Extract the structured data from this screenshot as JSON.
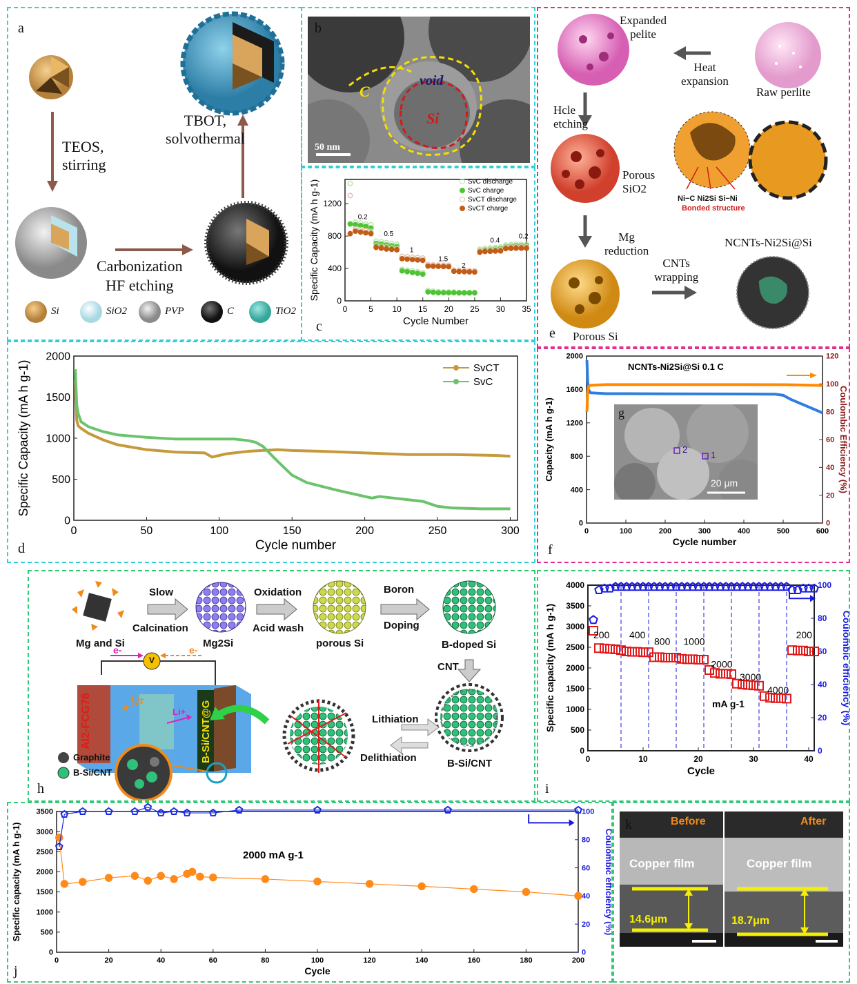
{
  "panel_a": {
    "label": "a",
    "step1": [
      "TEOS,",
      "stirring"
    ],
    "step2": "Carbonization",
    "step3": "HF etching",
    "step4": [
      "TBOT,",
      "solvothermal"
    ],
    "legend": [
      "Si",
      "SiO2",
      "PVP",
      "C",
      "TiO2"
    ]
  },
  "panel_b": {
    "label": "b",
    "c": "C",
    "void": "void",
    "si": "Si",
    "scale": "50 nm"
  },
  "panel_c": {
    "label": "c"
  },
  "panel_d": {
    "label": "d"
  },
  "panel_e": {
    "label": "e",
    "expanded": [
      "Expanded",
      "pelite"
    ],
    "heat": [
      "Heat",
      "expansion"
    ],
    "raw": "Raw perlite",
    "hcle": [
      "Hcle",
      "etching"
    ],
    "porous_sio2": [
      "Porous",
      "SiO2"
    ],
    "bond": "Ni−C Ni2Si Si−Ni",
    "bonded": "Bonded structure",
    "mg": [
      "Mg",
      "reduction"
    ],
    "cnts": [
      "CNTs",
      "wrapping"
    ],
    "product": "NCNTs-Ni2Si@Si",
    "porous_si": "Porous Si"
  },
  "panel_f": {
    "label": "f",
    "g_label": "g",
    "scale": "20 μm",
    "spot1": "1",
    "spot2": "2"
  },
  "panel_h": {
    "label": "h",
    "mgsi": "Mg and Si",
    "slow": "Slow",
    "calc": "Calcination",
    "mg2si": "Mg2Si",
    "oxidation": "Oxidation",
    "acid": "Acid wash",
    "porous_si": "porous Si",
    "boron": "Boron",
    "doping": "Doping",
    "bdoped": "B-doped Si",
    "cnt": "CNT",
    "lith": "Lithiation",
    "delith": "Delithiation",
    "bsicnt": "B-Si/CNT",
    "graphite": "Graphite",
    "bsicnt_legend": "B-Si/CNT",
    "anode": "B-Si/CNT@G",
    "cathode": "Al2-FCG76",
    "v": "V",
    "e": "e-",
    "li": "Li+"
  },
  "panel_i": {
    "label": "i"
  },
  "panel_j": {
    "label": "j"
  },
  "panel_k": {
    "label": "k",
    "before": "Before",
    "after": "After",
    "film": "Copper film",
    "t1": "14.6μm",
    "t2": "18.7μm"
  },
  "chart_data": [
    {
      "id": "c",
      "type": "scatter",
      "xlabel": "Cycle Number",
      "ylabel": "Specific Capacity (mA h g-1)",
      "xlim": [
        0,
        35
      ],
      "ylim": [
        0,
        1500
      ],
      "xticks": [
        0,
        5,
        10,
        15,
        20,
        25,
        30,
        35
      ],
      "yticks": [
        0,
        400,
        800,
        1200
      ],
      "rate_labels": [
        {
          "text": "0.2",
          "x": 2.5,
          "y": 1010
        },
        {
          "text": "0.5",
          "x": 7.5,
          "y": 800
        },
        {
          "text": "1",
          "x": 12.5,
          "y": 600
        },
        {
          "text": "1.5",
          "x": 18,
          "y": 490
        },
        {
          "text": "2",
          "x": 22.5,
          "y": 410
        },
        {
          "text": "0.4",
          "x": 28,
          "y": 720
        },
        {
          "text": "0.2",
          "x": 33.5,
          "y": 770
        }
      ],
      "series": [
        {
          "name": "SvC discharge",
          "color": "#b8e7a8",
          "open": true,
          "x": [
            1,
            2,
            3,
            4,
            5,
            6,
            7,
            8,
            9,
            10,
            11,
            12,
            13,
            14,
            15,
            16,
            17,
            18,
            19,
            20,
            21,
            22,
            23,
            24,
            25,
            26,
            27,
            28,
            29,
            30,
            31,
            32,
            33,
            34,
            35
          ],
          "y": [
            1450,
            970,
            960,
            950,
            940,
            740,
            730,
            720,
            710,
            700,
            390,
            380,
            370,
            360,
            350,
            130,
            120,
            115,
            110,
            110,
            110,
            105,
            105,
            105,
            105,
            640,
            650,
            655,
            660,
            665,
            690,
            695,
            700,
            700,
            700
          ]
        },
        {
          "name": "SvC charge",
          "color": "#4ec434",
          "open": false,
          "x": [
            1,
            2,
            3,
            4,
            5,
            6,
            7,
            8,
            9,
            10,
            11,
            12,
            13,
            14,
            15,
            16,
            17,
            18,
            19,
            20,
            21,
            22,
            23,
            24,
            25,
            26,
            27,
            28,
            29,
            30,
            31,
            32,
            33,
            34,
            35
          ],
          "y": [
            950,
            940,
            930,
            920,
            900,
            710,
            700,
            690,
            680,
            670,
            370,
            360,
            350,
            340,
            330,
            110,
            105,
            100,
            100,
            100,
            100,
            98,
            98,
            98,
            98,
            620,
            630,
            635,
            640,
            645,
            670,
            675,
            680,
            680,
            680
          ]
        },
        {
          "name": "SvCT discharge",
          "color": "#e2c2b2",
          "open": true,
          "x": [
            1,
            2,
            3,
            4,
            5,
            6,
            7,
            8,
            9,
            10,
            11,
            12,
            13,
            14,
            15,
            16,
            17,
            18,
            19,
            20,
            21,
            22,
            23,
            24,
            25,
            26,
            27,
            28,
            29,
            30,
            31,
            32,
            33,
            34,
            35
          ],
          "y": [
            1300,
            890,
            880,
            870,
            860,
            690,
            680,
            670,
            660,
            650,
            550,
            545,
            540,
            535,
            530,
            450,
            445,
            440,
            440,
            440,
            380,
            378,
            376,
            375,
            374,
            620,
            630,
            632,
            635,
            636,
            665,
            668,
            670,
            670,
            670
          ]
        },
        {
          "name": "SvCT charge",
          "color": "#c35c14",
          "open": false,
          "x": [
            1,
            2,
            3,
            4,
            5,
            6,
            7,
            8,
            9,
            10,
            11,
            12,
            13,
            14,
            15,
            16,
            17,
            18,
            19,
            20,
            21,
            22,
            23,
            24,
            25,
            26,
            27,
            28,
            29,
            30,
            31,
            32,
            33,
            34,
            35
          ],
          "y": [
            830,
            860,
            850,
            840,
            830,
            660,
            650,
            640,
            635,
            630,
            520,
            515,
            510,
            505,
            500,
            430,
            428,
            426,
            424,
            422,
            365,
            362,
            360,
            358,
            356,
            600,
            610,
            612,
            615,
            616,
            645,
            648,
            650,
            650,
            650
          ]
        }
      ]
    },
    {
      "id": "d",
      "type": "line",
      "xlabel": "Cycle number",
      "ylabel": "Specific Capacity (mA h g-1)",
      "xlim": [
        0,
        305
      ],
      "ylim": [
        0,
        2000
      ],
      "xticks": [
        0,
        50,
        100,
        150,
        200,
        250,
        300
      ],
      "yticks": [
        0,
        500,
        1000,
        1500,
        2000
      ],
      "series": [
        {
          "name": "SvCT",
          "color": "#c49a3c",
          "x": [
            1,
            2,
            3,
            5,
            10,
            20,
            30,
            50,
            70,
            90,
            95,
            100,
            105,
            120,
            140,
            150,
            170,
            200,
            230,
            260,
            290,
            300
          ],
          "y": [
            1700,
            1220,
            1150,
            1120,
            1060,
            980,
            920,
            860,
            830,
            820,
            770,
            790,
            810,
            840,
            860,
            850,
            840,
            820,
            800,
            800,
            790,
            780
          ]
        },
        {
          "name": "SvC",
          "color": "#6cc36c",
          "x": [
            1,
            2,
            3,
            5,
            10,
            20,
            30,
            50,
            70,
            90,
            100,
            110,
            120,
            125,
            130,
            140,
            150,
            160,
            180,
            200,
            205,
            210,
            215,
            230,
            240,
            245,
            250,
            260,
            280,
            300
          ],
          "y": [
            1840,
            1400,
            1300,
            1200,
            1140,
            1080,
            1040,
            1010,
            990,
            990,
            990,
            990,
            970,
            950,
            900,
            720,
            550,
            460,
            370,
            290,
            270,
            290,
            280,
            250,
            230,
            200,
            170,
            150,
            140,
            140
          ]
        }
      ]
    },
    {
      "id": "f",
      "type": "line",
      "title": "NCNTs-Ni2Si@Si 0.1 C",
      "xlabel": "Cycle number",
      "ylabel": "Capacity (mA h g-1)",
      "y2label": "Coulombic Efficiency (%)",
      "xlim": [
        0,
        600
      ],
      "ylim": [
        0,
        2000
      ],
      "y2lim": [
        0,
        120
      ],
      "xticks": [
        0,
        100,
        200,
        300,
        400,
        500,
        600
      ],
      "yticks": [
        0,
        400,
        800,
        1200,
        1600,
        2000
      ],
      "y2ticks": [
        0,
        20,
        40,
        60,
        80,
        100,
        120
      ],
      "series": [
        {
          "name": "Capacity",
          "color": "#2f7de0",
          "x": [
            1,
            3,
            5,
            10,
            50,
            100,
            200,
            300,
            400,
            480,
            500,
            520,
            550,
            580,
            600
          ],
          "y": [
            1950,
            1700,
            1600,
            1560,
            1550,
            1550,
            1548,
            1546,
            1545,
            1543,
            1530,
            1480,
            1420,
            1360,
            1320
          ]
        },
        {
          "name": "Coulombic efficiency",
          "color": "#ff8a00",
          "axis": "right",
          "x": [
            1,
            3,
            5,
            10,
            50,
            100,
            200,
            300,
            400,
            500,
            550,
            580,
            600
          ],
          "y": [
            80,
            94,
            98,
            99,
            99.5,
            99.5,
            99.5,
            99.5,
            99.5,
            99.4,
            99.2,
            99,
            98.8
          ]
        }
      ]
    },
    {
      "id": "i",
      "type": "scatter",
      "xlabel": "Cycle",
      "ylabel": "Specific capacity (mA h g-1)",
      "y2label": "Coulombic efficiency (%)",
      "xlim": [
        0,
        41
      ],
      "ylim": [
        0,
        4000
      ],
      "y2lim": [
        0,
        100
      ],
      "xticks": [
        0,
        10,
        20,
        30,
        40
      ],
      "yticks": [
        0,
        500,
        1000,
        1500,
        2000,
        2500,
        3000,
        3500,
        4000
      ],
      "y2ticks": [
        0,
        20,
        40,
        60,
        80,
        100
      ],
      "rate_note": "mA g-1",
      "rate_labels": [
        {
          "text": "200",
          "x": 1,
          "y": 2720
        },
        {
          "text": "400",
          "x": 7.5,
          "y": 2720
        },
        {
          "text": "800",
          "x": 12,
          "y": 2560
        },
        {
          "text": "1000",
          "x": 17.3,
          "y": 2560
        },
        {
          "text": "2000",
          "x": 22.3,
          "y": 2010
        },
        {
          "text": "3000",
          "x": 27.5,
          "y": 1700
        },
        {
          "text": "4000",
          "x": 32.5,
          "y": 1380
        },
        {
          "text": "200",
          "x": 37.7,
          "y": 2720
        }
      ],
      "dividers": [
        6,
        11,
        16,
        21,
        26,
        31,
        36
      ],
      "series": [
        {
          "name": "Specific capacity",
          "color": "#e01a1a",
          "x": [
            1,
            2,
            3,
            4,
            5,
            6,
            7,
            8,
            9,
            10,
            11,
            12,
            13,
            14,
            15,
            16,
            17,
            18,
            19,
            20,
            21,
            22,
            23,
            24,
            25,
            26,
            27,
            28,
            29,
            30,
            31,
            32,
            33,
            34,
            35,
            36,
            37,
            38,
            39,
            40,
            41
          ],
          "y": [
            2900,
            2480,
            2470,
            2460,
            2450,
            2430,
            2400,
            2390,
            2390,
            2380,
            2380,
            2260,
            2260,
            2250,
            2250,
            2250,
            2220,
            2210,
            2210,
            2200,
            2200,
            1950,
            1880,
            1860,
            1860,
            1850,
            1620,
            1600,
            1590,
            1580,
            1570,
            1320,
            1280,
            1270,
            1270,
            1260,
            2430,
            2420,
            2420,
            2400,
            2400
          ]
        },
        {
          "name": "Coulombic efficiency",
          "color": "#1a1adf",
          "axis": "right",
          "x": [
            1,
            2,
            3,
            4,
            5,
            6,
            7,
            8,
            9,
            10,
            11,
            12,
            13,
            14,
            15,
            16,
            17,
            18,
            19,
            20,
            21,
            22,
            23,
            24,
            25,
            26,
            27,
            28,
            29,
            30,
            31,
            32,
            33,
            34,
            35,
            36,
            37,
            38,
            39,
            40,
            41
          ],
          "y": [
            79,
            97,
            98,
            98,
            99,
            99,
            99,
            99,
            99,
            99,
            99,
            99,
            99,
            99,
            99,
            99,
            99,
            99,
            99,
            99,
            99,
            99,
            99,
            99,
            99,
            99,
            99,
            99,
            99,
            99,
            99,
            99,
            99,
            99,
            99,
            99,
            97,
            97,
            98,
            98,
            98
          ]
        }
      ]
    },
    {
      "id": "j",
      "type": "scatter",
      "title": "2000 mA g-1",
      "xlabel": "Cycle",
      "ylabel": "Specific capacity (mA h g-1)",
      "y2label": "Coulombic efficiency (%)",
      "xlim": [
        0,
        200
      ],
      "ylim": [
        0,
        3500
      ],
      "y2lim": [
        0,
        100
      ],
      "xticks": [
        0,
        20,
        40,
        60,
        80,
        100,
        120,
        140,
        160,
        180,
        200
      ],
      "yticks": [
        0,
        500,
        1000,
        1500,
        2000,
        2500,
        3000,
        3500
      ],
      "y2ticks": [
        0,
        20,
        40,
        60,
        80,
        100
      ],
      "series": [
        {
          "name": "Specific capacity",
          "color": "#ff8a1a",
          "x": [
            1,
            3,
            10,
            20,
            30,
            35,
            40,
            45,
            50,
            52,
            55,
            60,
            80,
            100,
            120,
            140,
            160,
            180,
            200
          ],
          "y": [
            2850,
            1700,
            1750,
            1850,
            1900,
            1780,
            1900,
            1820,
            1950,
            2000,
            1880,
            1860,
            1820,
            1760,
            1700,
            1640,
            1570,
            1500,
            1400
          ]
        },
        {
          "name": "Coulombic efficiency",
          "color": "#1a2adf",
          "axis": "right",
          "x": [
            1,
            3,
            10,
            20,
            30,
            35,
            40,
            45,
            50,
            60,
            70,
            100,
            150,
            200
          ],
          "y": [
            75,
            98,
            100,
            100,
            100,
            103,
            99,
            100,
            99,
            99,
            101,
            101,
            101,
            101
          ]
        }
      ]
    }
  ]
}
